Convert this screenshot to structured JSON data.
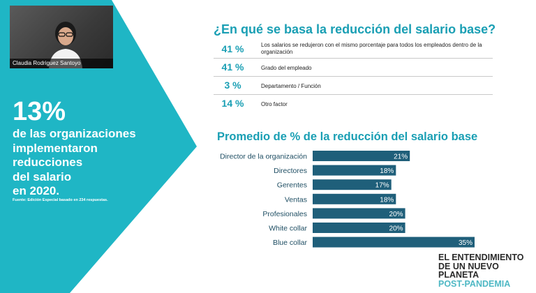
{
  "video": {
    "participant_name": "Claudia Rodriguez Santoyo"
  },
  "left_panel": {
    "big_percent": "13%",
    "statement_lines": [
      "de las organizaciones",
      "implementaron",
      "reducciones",
      "del salario",
      "en 2020."
    ],
    "source_note": "Fuente: Edición Especial basado en 234 respuestas."
  },
  "question": {
    "title": "¿En qué se basa la reducción del salario base?",
    "answers": [
      {
        "percent": "41 %",
        "text": "Los salarios se redujeron con el mismo porcentaje para todos los  empleados dentro de la organización"
      },
      {
        "percent": "41 %",
        "text": "Grado del empleado"
      },
      {
        "percent": "3 %",
        "text": "Departamento / Función"
      },
      {
        "percent": "14 %",
        "text": "Otro factor"
      }
    ]
  },
  "chart_data": {
    "type": "bar",
    "orientation": "horizontal",
    "title": "Promedio de % de la reducción del salario base",
    "categories": [
      "Director de la organización",
      "Directores",
      "Gerentes",
      "Ventas",
      "Profesionales",
      "White collar",
      "Blue collar"
    ],
    "values": [
      21,
      18,
      17,
      18,
      20,
      20,
      35
    ],
    "value_labels": [
      "21%",
      "18%",
      "17%",
      "18%",
      "20%",
      "20%",
      "35%"
    ],
    "xlim": [
      0,
      35
    ],
    "bar_color": "#1f5f7a",
    "grid": false
  },
  "logo": {
    "lines": [
      "EL ENTENDIMIENTO",
      "DE UN NUEVO",
      "PLANETA",
      "POST-PANDEMIA"
    ]
  },
  "colors": {
    "teal": "#1fb6c5",
    "accent": "#1a9fb4",
    "bar": "#1f5f7a"
  }
}
